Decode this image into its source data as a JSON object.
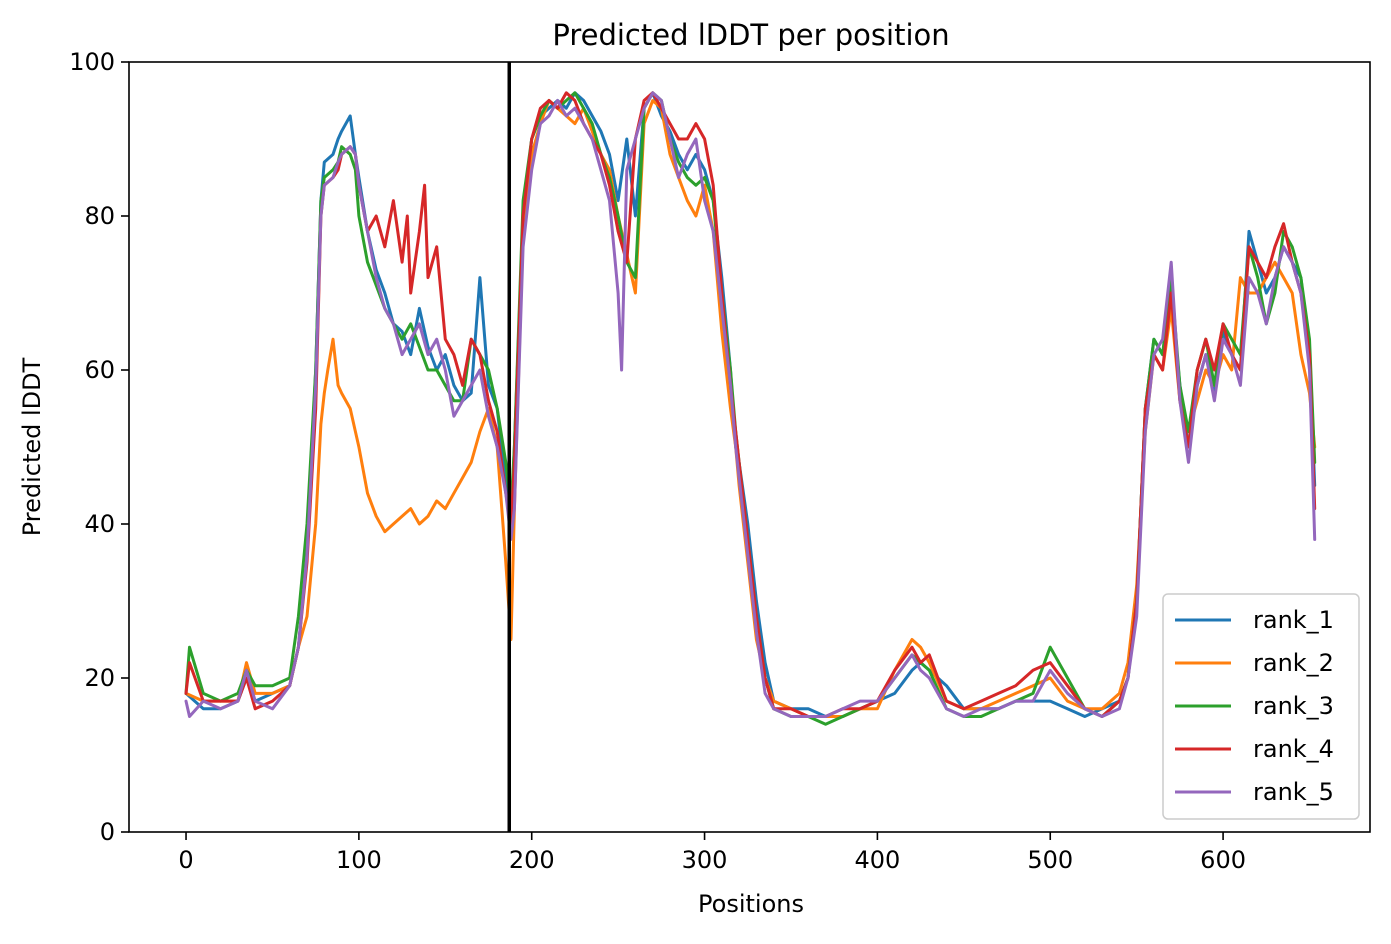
{
  "chart_data": {
    "type": "line",
    "title": "Predicted lDDT per position",
    "xlabel": "Positions",
    "ylabel": "Predicted lDDT",
    "xlim": [
      -33,
      685
    ],
    "ylim": [
      0,
      100
    ],
    "xticks": [
      0,
      100,
      200,
      300,
      400,
      500,
      600
    ],
    "yticks": [
      0,
      20,
      40,
      60,
      80,
      100
    ],
    "grid": false,
    "legend_position": "lower right",
    "vline_x": 187,
    "series": [
      {
        "name": "rank_1",
        "color": "#1f77b4",
        "x": [
          0,
          10,
          20,
          30,
          35,
          40,
          50,
          60,
          65,
          70,
          75,
          78,
          80,
          85,
          88,
          90,
          95,
          98,
          100,
          105,
          110,
          115,
          120,
          125,
          130,
          135,
          140,
          145,
          150,
          155,
          160,
          165,
          170,
          175,
          180,
          185,
          188,
          190,
          195,
          200,
          205,
          210,
          215,
          220,
          225,
          230,
          235,
          240,
          245,
          250,
          255,
          260,
          265,
          270,
          275,
          280,
          285,
          290,
          295,
          300,
          305,
          310,
          315,
          318,
          320,
          325,
          330,
          335,
          340,
          350,
          360,
          370,
          380,
          390,
          400,
          410,
          420,
          425,
          430,
          440,
          450,
          460,
          470,
          480,
          490,
          500,
          510,
          520,
          530,
          540,
          545,
          550,
          555,
          560,
          565,
          570,
          575,
          580,
          585,
          590,
          595,
          600,
          605,
          610,
          615,
          620,
          625,
          630,
          635,
          640,
          645,
          650,
          653
        ],
        "y": [
          18,
          16,
          16,
          17,
          20,
          17,
          18,
          19,
          24,
          36,
          60,
          82,
          87,
          88,
          90,
          91,
          93,
          88,
          85,
          78,
          73,
          70,
          66,
          65,
          62,
          68,
          63,
          60,
          62,
          58,
          56,
          57,
          72,
          58,
          55,
          45,
          40,
          50,
          80,
          90,
          93,
          94,
          95,
          94,
          96,
          95,
          93,
          91,
          88,
          82,
          90,
          80,
          94,
          96,
          93,
          91,
          88,
          86,
          88,
          86,
          82,
          72,
          60,
          50,
          48,
          40,
          30,
          22,
          17,
          16,
          16,
          15,
          15,
          16,
          17,
          18,
          21,
          22,
          21,
          19,
          16,
          16,
          16,
          17,
          17,
          17,
          16,
          15,
          16,
          17,
          20,
          30,
          55,
          64,
          62,
          70,
          58,
          50,
          58,
          62,
          57,
          65,
          62,
          60,
          78,
          74,
          70,
          72,
          76,
          74,
          72,
          62,
          45
        ]
      },
      {
        "name": "rank_2",
        "color": "#ff7f0e",
        "x": [
          0,
          10,
          20,
          30,
          35,
          40,
          50,
          60,
          65,
          70,
          75,
          78,
          80,
          82,
          85,
          88,
          90,
          95,
          98,
          100,
          105,
          110,
          115,
          120,
          125,
          130,
          135,
          140,
          145,
          150,
          155,
          160,
          165,
          170,
          175,
          180,
          185,
          188,
          190,
          195,
          200,
          205,
          210,
          215,
          220,
          225,
          230,
          235,
          240,
          245,
          250,
          255,
          260,
          265,
          270,
          275,
          280,
          285,
          290,
          295,
          300,
          305,
          310,
          315,
          318,
          320,
          325,
          330,
          335,
          340,
          350,
          360,
          370,
          380,
          390,
          400,
          410,
          420,
          425,
          430,
          440,
          450,
          460,
          470,
          480,
          490,
          500,
          510,
          520,
          530,
          540,
          545,
          550,
          555,
          560,
          565,
          570,
          575,
          580,
          585,
          590,
          595,
          600,
          605,
          610,
          615,
          620,
          625,
          630,
          635,
          640,
          645,
          650,
          653
        ],
        "y": [
          18,
          17,
          17,
          17,
          22,
          18,
          18,
          19,
          24,
          28,
          40,
          53,
          57,
          60,
          64,
          58,
          57,
          55,
          52,
          50,
          44,
          41,
          39,
          40,
          41,
          42,
          40,
          41,
          43,
          42,
          44,
          46,
          48,
          52,
          55,
          50,
          35,
          25,
          42,
          78,
          88,
          92,
          95,
          94,
          93,
          92,
          94,
          91,
          88,
          86,
          80,
          75,
          70,
          92,
          95,
          94,
          88,
          85,
          82,
          80,
          84,
          78,
          65,
          55,
          50,
          45,
          35,
          25,
          20,
          17,
          16,
          15,
          15,
          15,
          16,
          16,
          21,
          25,
          24,
          22,
          17,
          16,
          16,
          17,
          18,
          19,
          20,
          17,
          16,
          16,
          18,
          22,
          32,
          52,
          62,
          60,
          68,
          56,
          52,
          56,
          60,
          58,
          62,
          60,
          72,
          70,
          70,
          72,
          74,
          72,
          70,
          62,
          57,
          50
        ]
      },
      {
        "name": "rank_3",
        "color": "#2ca02c",
        "x": [
          0,
          2,
          10,
          20,
          30,
          35,
          40,
          50,
          60,
          65,
          70,
          75,
          78,
          80,
          85,
          88,
          90,
          95,
          98,
          100,
          105,
          110,
          115,
          120,
          125,
          130,
          135,
          140,
          145,
          150,
          155,
          160,
          165,
          170,
          175,
          180,
          185,
          188,
          190,
          195,
          200,
          205,
          210,
          215,
          220,
          225,
          230,
          235,
          240,
          245,
          250,
          255,
          260,
          265,
          270,
          275,
          280,
          285,
          290,
          295,
          300,
          305,
          310,
          315,
          318,
          320,
          325,
          330,
          335,
          340,
          350,
          360,
          370,
          380,
          390,
          400,
          410,
          420,
          425,
          430,
          440,
          450,
          460,
          470,
          480,
          490,
          500,
          510,
          520,
          530,
          540,
          545,
          550,
          555,
          560,
          565,
          570,
          575,
          580,
          585,
          590,
          595,
          600,
          605,
          610,
          615,
          620,
          625,
          630,
          635,
          640,
          645,
          650,
          653
        ],
        "y": [
          18,
          24,
          18,
          17,
          18,
          21,
          19,
          19,
          20,
          28,
          40,
          60,
          82,
          85,
          86,
          87,
          89,
          88,
          86,
          80,
          74,
          71,
          68,
          66,
          64,
          66,
          63,
          60,
          60,
          58,
          56,
          56,
          64,
          62,
          60,
          55,
          48,
          42,
          50,
          82,
          90,
          93,
          95,
          94,
          95,
          96,
          94,
          92,
          88,
          85,
          80,
          74,
          72,
          94,
          96,
          95,
          90,
          87,
          85,
          84,
          85,
          82,
          70,
          60,
          52,
          48,
          38,
          28,
          20,
          16,
          15,
          15,
          14,
          15,
          16,
          17,
          20,
          23,
          22,
          21,
          16,
          15,
          15,
          16,
          17,
          18,
          24,
          20,
          16,
          15,
          17,
          20,
          30,
          55,
          64,
          62,
          72,
          58,
          52,
          60,
          64,
          58,
          66,
          64,
          62,
          76,
          72,
          66,
          70,
          78,
          76,
          72,
          64,
          48
        ]
      },
      {
        "name": "rank_4",
        "color": "#d62728",
        "x": [
          0,
          2,
          10,
          20,
          30,
          35,
          40,
          50,
          60,
          65,
          70,
          75,
          78,
          80,
          85,
          88,
          90,
          95,
          98,
          100,
          105,
          110,
          115,
          120,
          125,
          128,
          130,
          135,
          138,
          140,
          145,
          150,
          155,
          160,
          165,
          170,
          175,
          180,
          185,
          188,
          190,
          195,
          200,
          205,
          210,
          215,
          220,
          225,
          230,
          235,
          240,
          245,
          250,
          255,
          260,
          265,
          270,
          275,
          280,
          285,
          290,
          295,
          300,
          305,
          310,
          315,
          318,
          320,
          325,
          330,
          335,
          340,
          350,
          360,
          370,
          380,
          390,
          400,
          410,
          420,
          425,
          430,
          440,
          450,
          460,
          470,
          480,
          490,
          500,
          510,
          520,
          530,
          540,
          545,
          550,
          555,
          560,
          565,
          570,
          575,
          580,
          585,
          590,
          595,
          600,
          605,
          610,
          615,
          620,
          625,
          630,
          635,
          640,
          645,
          650,
          653
        ],
        "y": [
          18,
          22,
          17,
          17,
          17,
          20,
          16,
          17,
          19,
          24,
          35,
          55,
          80,
          84,
          85,
          86,
          88,
          89,
          88,
          84,
          78,
          80,
          76,
          82,
          74,
          80,
          70,
          78,
          84,
          72,
          76,
          64,
          62,
          58,
          64,
          62,
          56,
          52,
          44,
          40,
          48,
          80,
          90,
          94,
          95,
          94,
          96,
          95,
          92,
          90,
          88,
          84,
          78,
          74,
          90,
          95,
          96,
          94,
          92,
          90,
          90,
          92,
          90,
          84,
          70,
          58,
          52,
          48,
          38,
          28,
          20,
          16,
          16,
          15,
          15,
          16,
          16,
          17,
          21,
          24,
          22,
          23,
          17,
          16,
          17,
          18,
          19,
          21,
          22,
          19,
          16,
          15,
          17,
          20,
          30,
          55,
          62,
          60,
          70,
          56,
          50,
          60,
          64,
          60,
          66,
          62,
          60,
          76,
          74,
          72,
          76,
          79,
          74,
          70,
          62,
          42
        ]
      },
      {
        "name": "rank_5",
        "color": "#9467bd",
        "x": [
          0,
          2,
          10,
          20,
          30,
          35,
          40,
          50,
          60,
          65,
          70,
          75,
          78,
          80,
          85,
          88,
          90,
          95,
          98,
          100,
          105,
          110,
          115,
          120,
          125,
          130,
          135,
          140,
          145,
          150,
          155,
          160,
          165,
          170,
          175,
          180,
          185,
          188,
          190,
          195,
          200,
          205,
          210,
          215,
          220,
          225,
          230,
          235,
          240,
          245,
          250,
          252,
          255,
          260,
          265,
          270,
          275,
          280,
          285,
          290,
          295,
          300,
          305,
          310,
          315,
          318,
          320,
          325,
          330,
          335,
          340,
          350,
          360,
          370,
          380,
          390,
          400,
          410,
          420,
          425,
          430,
          440,
          450,
          460,
          470,
          480,
          490,
          500,
          510,
          520,
          530,
          540,
          545,
          550,
          555,
          560,
          565,
          570,
          575,
          580,
          585,
          590,
          595,
          600,
          605,
          610,
          615,
          620,
          625,
          630,
          635,
          640,
          645,
          650,
          653
        ],
        "y": [
          17,
          15,
          17,
          16,
          17,
          21,
          17,
          16,
          19,
          24,
          36,
          58,
          80,
          84,
          85,
          87,
          88,
          89,
          88,
          84,
          78,
          72,
          68,
          66,
          62,
          64,
          66,
          62,
          64,
          60,
          54,
          56,
          58,
          60,
          54,
          50,
          44,
          38,
          42,
          76,
          86,
          92,
          93,
          95,
          93,
          94,
          92,
          90,
          86,
          82,
          70,
          60,
          86,
          90,
          94,
          96,
          95,
          90,
          85,
          88,
          90,
          82,
          78,
          68,
          58,
          50,
          46,
          36,
          26,
          18,
          16,
          15,
          15,
          15,
          16,
          17,
          17,
          20,
          23,
          21,
          20,
          16,
          15,
          16,
          16,
          17,
          17,
          21,
          18,
          16,
          15,
          16,
          20,
          28,
          52,
          62,
          64,
          74,
          56,
          48,
          58,
          62,
          56,
          64,
          62,
          58,
          72,
          70,
          66,
          72,
          76,
          74,
          70,
          60,
          38
        ]
      }
    ]
  }
}
